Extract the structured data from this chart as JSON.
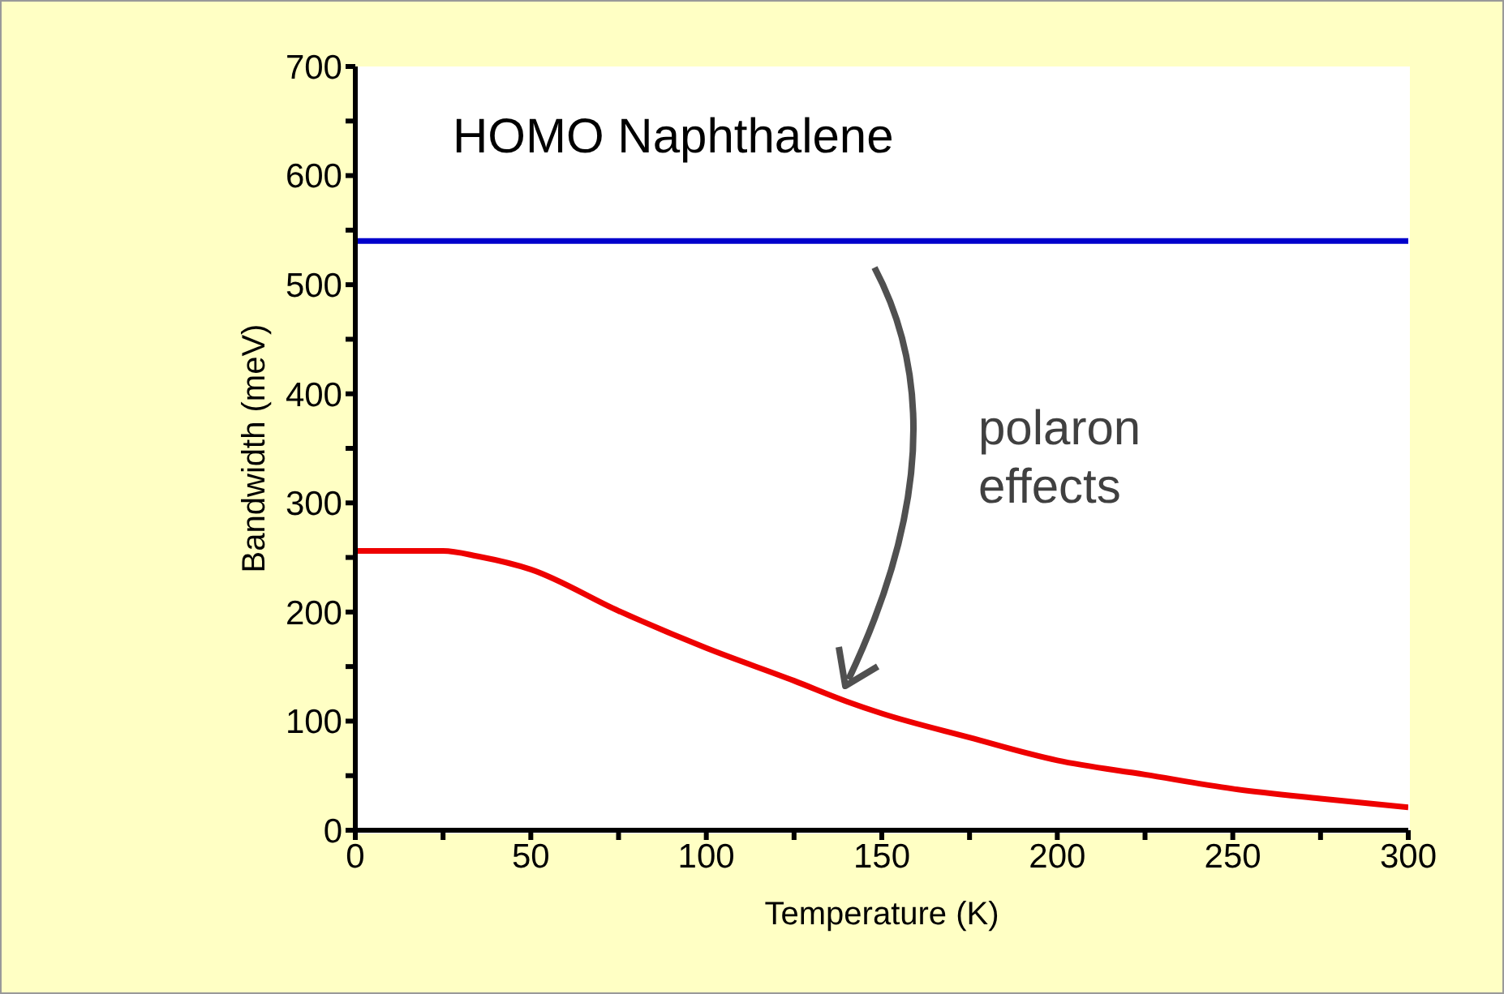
{
  "chart_data": {
    "type": "line",
    "xlabel": "Temperature (K)",
    "ylabel": "Bandwidth (meV)",
    "annotations": [
      "HOMO Naphthalene",
      "polaron effects"
    ],
    "series": [
      {
        "color": "#0000cc",
        "x": [
          0,
          300
        ],
        "values": [
          540,
          540
        ]
      },
      {
        "color": "#ee0000",
        "x": [
          0,
          25,
          35,
          50,
          75,
          100,
          125,
          140,
          150,
          175,
          200,
          225,
          250,
          275,
          300
        ],
        "values": [
          256,
          256,
          251,
          239,
          201,
          167,
          137,
          118,
          107,
          85,
          64,
          51,
          38,
          29,
          21
        ]
      }
    ],
    "xlim": [
      0,
      300
    ],
    "xticks": [
      0,
      {
        "value": 25,
        "label": null
      },
      50,
      {
        "value": 75,
        "label": null
      },
      100,
      {
        "value": 125,
        "label": null
      },
      150,
      {
        "value": 175,
        "label": null
      },
      200,
      {
        "value": 225,
        "label": null
      },
      250,
      {
        "value": 275,
        "label": null
      },
      300
    ],
    "ylim": [
      0,
      700
    ],
    "yticks": [
      0,
      {
        "value": 50,
        "label": null
      },
      100,
      {
        "value": 150,
        "label": null
      },
      200,
      {
        "value": 250,
        "label": null
      },
      300,
      {
        "value": 350,
        "label": null
      },
      400,
      {
        "value": 450,
        "label": null
      },
      500,
      {
        "value": 550,
        "label": null
      },
      600,
      {
        "value": 650,
        "label": null
      },
      700
    ],
    "grid": false,
    "legend": false,
    "marker": "none",
    "line_style": "solid"
  }
}
